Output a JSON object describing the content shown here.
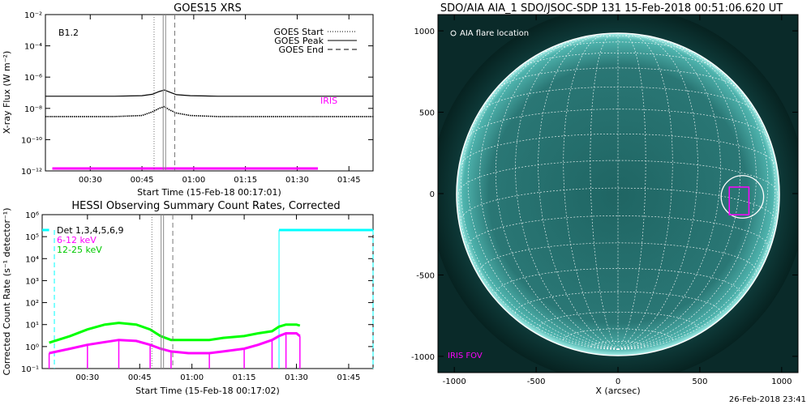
{
  "colors": {
    "magenta": "#ff00ff",
    "cyan": "#00ffff",
    "green": "#00ff00",
    "sun_face": "#2a7a78",
    "sun_limb": "#9fe7e0",
    "black": "#000000",
    "white": "#ffffff"
  },
  "timestamp": "26-Feb-2018 23:41",
  "chart_data": [
    {
      "type": "line",
      "title": "GOES15 XRS",
      "xlabel": "Start Time (15-Feb-18 00:17:01)",
      "ylabel": "X-ray Flux (W m⁻²)",
      "y_scale": "log",
      "ylim": [
        1e-12,
        0.01
      ],
      "y_ticks": [
        "10⁻¹²",
        "10⁻¹⁰",
        "10⁻⁸",
        "10⁻⁶",
        "10⁻⁴",
        "10⁻²"
      ],
      "x_ticks": [
        "00:30",
        "00:45",
        "01:00",
        "01:15",
        "01:30",
        "01:45"
      ],
      "x_minutes_from_start": [
        13,
        28,
        43,
        58,
        73,
        88
      ],
      "xlim_minutes": [
        0,
        95
      ],
      "class_label": "B1.2",
      "iris_label": "IRIS",
      "legend": [
        {
          "label": "GOES Start",
          "style": "dotted"
        },
        {
          "label": "GOES Peak",
          "style": "solid"
        },
        {
          "label": "GOES End",
          "style": "dashed"
        }
      ],
      "event_lines_minutes": {
        "start": 31.5,
        "peak": 34.5,
        "end": 37.5
      },
      "iris_bar_minutes": [
        2,
        79
      ],
      "iris_bar_y": 1e-12,
      "series": [
        {
          "name": "long",
          "x": [
            0,
            10,
            20,
            28,
            31,
            33,
            34.5,
            36,
            38,
            42,
            50,
            60,
            70,
            80,
            90,
            95
          ],
          "values": [
            6e-08,
            6e-08,
            6e-08,
            6.5e-08,
            8e-08,
            1.2e-07,
            1.5e-07,
            1.1e-07,
            7.5e-08,
            6.5e-08,
            6e-08,
            6e-08,
            6e-08,
            6e-08,
            6e-08,
            6e-08
          ]
        },
        {
          "name": "short",
          "x": [
            0,
            10,
            20,
            28,
            31,
            33,
            34.5,
            36,
            38,
            42,
            50,
            60,
            70,
            80,
            90,
            95
          ],
          "values": [
            3e-09,
            3e-09,
            3e-09,
            3.5e-09,
            6e-09,
            1e-08,
            1.3e-08,
            8e-09,
            5e-09,
            3.5e-09,
            3e-09,
            3e-09,
            3e-09,
            3e-09,
            3e-09,
            3e-09
          ]
        }
      ]
    },
    {
      "type": "line",
      "title": "HESSI Observing Summary Count Rates, Corrected",
      "xlabel": "Start Time (15-Feb-18 00:17:02)",
      "ylabel": "Corrected Count Rate (s⁻¹ detector⁻¹)",
      "y_scale": "log",
      "ylim": [
        0.1,
        1000000.0
      ],
      "y_ticks": [
        "10⁻¹",
        "10⁰",
        "10¹",
        "10²",
        "10³",
        "10⁴",
        "10⁵",
        "10⁶"
      ],
      "x_ticks": [
        "00:30",
        "00:45",
        "01:00",
        "01:15",
        "01:30",
        "01:45"
      ],
      "x_minutes_from_start": [
        13,
        28,
        43,
        58,
        73,
        88
      ],
      "xlim_minutes": [
        0,
        95
      ],
      "legend": [
        {
          "label": "Det 1,3,4,5,6,9",
          "color": "#000000"
        },
        {
          "label": "6-12 keV",
          "color": "#ff00ff"
        },
        {
          "label": "12-25 keV",
          "color": "#00ff00"
        }
      ],
      "event_lines_minutes": {
        "start": 31.5,
        "peak": 34.5,
        "end": 37.5
      },
      "cyan_segments": [
        {
          "x": [
            0,
            2
          ],
          "y": 200000.0
        },
        {
          "x": [
            68,
            95
          ],
          "y": 200000.0
        }
      ],
      "cyan_verticals_minutes": [
        {
          "x": 3.5,
          "style": "dashed"
        },
        {
          "x": 68,
          "style": "solid"
        },
        {
          "x": 95,
          "style": "dashed"
        }
      ],
      "series": [
        {
          "name": "12-25 keV",
          "color": "#00ff00",
          "x": [
            2,
            8,
            13,
            18,
            22,
            27,
            31,
            34,
            37,
            42,
            48,
            52,
            58,
            62,
            66,
            68,
            70,
            73,
            74
          ],
          "values": [
            1.5,
            3,
            6,
            10,
            12,
            10,
            6,
            3,
            2,
            2,
            2,
            2.5,
            3,
            4,
            5,
            8,
            10,
            10,
            9
          ]
        },
        {
          "name": "6-12 keV",
          "color": "#ff00ff",
          "x": [
            2,
            8,
            13,
            18,
            22,
            27,
            31,
            34,
            37,
            42,
            48,
            52,
            58,
            62,
            66,
            68,
            70,
            73,
            74
          ],
          "values": [
            0.5,
            0.8,
            1.2,
            1.6,
            2,
            1.8,
            1.2,
            0.8,
            0.6,
            0.5,
            0.5,
            0.6,
            0.8,
            1.2,
            2,
            3,
            4,
            4,
            3
          ]
        }
      ]
    },
    {
      "type": "heatmap",
      "title": "SDO/AIA AIA_1 SDO/JSOC-SDP 131 15-Feb-2018 00:51:06.620 UT",
      "xlabel": "X (arcsec)",
      "ylabel": "",
      "xlim": [
        -1100,
        1100
      ],
      "ylim": [
        -1100,
        1100
      ],
      "x_ticks": [
        -1000,
        -500,
        0,
        500,
        1000
      ],
      "y_ticks": [
        -1000,
        -500,
        0,
        500,
        1000
      ],
      "solar_radius_arcsec": 975,
      "annotation_flare": "AIA flare location",
      "annotation_iris": "IRIS FOV",
      "flare_location": {
        "x": 760,
        "y": -20,
        "radius": 130
      },
      "iris_fov": {
        "x_range": [
          680,
          800
        ],
        "y_range": [
          -130,
          40
        ]
      }
    }
  ]
}
